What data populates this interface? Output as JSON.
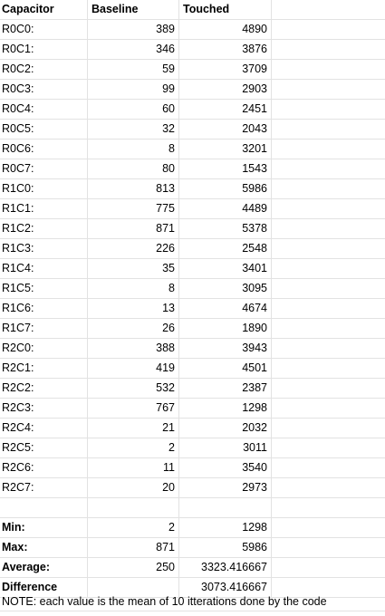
{
  "sheet": {
    "headers": {
      "capacitor": "Capacitor",
      "baseline": "Baseline",
      "touched": "Touched"
    },
    "rows": [
      {
        "label": "R0C0:",
        "baseline": "389",
        "touched": "4890"
      },
      {
        "label": "R0C1:",
        "baseline": "346",
        "touched": "3876"
      },
      {
        "label": "R0C2:",
        "baseline": "59",
        "touched": "3709"
      },
      {
        "label": "R0C3:",
        "baseline": "99",
        "touched": "2903"
      },
      {
        "label": "R0C4:",
        "baseline": "60",
        "touched": "2451"
      },
      {
        "label": "R0C5:",
        "baseline": "32",
        "touched": "2043"
      },
      {
        "label": "R0C6:",
        "baseline": "8",
        "touched": "3201"
      },
      {
        "label": "R0C7:",
        "baseline": "80",
        "touched": "1543"
      },
      {
        "label": "R1C0:",
        "baseline": "813",
        "touched": "5986"
      },
      {
        "label": "R1C1:",
        "baseline": "775",
        "touched": "4489"
      },
      {
        "label": "R1C2:",
        "baseline": "871",
        "touched": "5378"
      },
      {
        "label": "R1C3:",
        "baseline": "226",
        "touched": "2548"
      },
      {
        "label": "R1C4:",
        "baseline": "35",
        "touched": "3401"
      },
      {
        "label": "R1C5:",
        "baseline": "8",
        "touched": "3095"
      },
      {
        "label": "R1C6:",
        "baseline": "13",
        "touched": "4674"
      },
      {
        "label": "R1C7:",
        "baseline": "26",
        "touched": "1890"
      },
      {
        "label": "R2C0:",
        "baseline": "388",
        "touched": "3943"
      },
      {
        "label": "R2C1:",
        "baseline": "419",
        "touched": "4501"
      },
      {
        "label": "R2C2:",
        "baseline": "532",
        "touched": "2387"
      },
      {
        "label": "R2C3:",
        "baseline": "767",
        "touched": "1298"
      },
      {
        "label": "R2C4:",
        "baseline": "21",
        "touched": "2032"
      },
      {
        "label": "R2C5:",
        "baseline": "2",
        "touched": "3011"
      },
      {
        "label": "R2C6:",
        "baseline": "11",
        "touched": "3540"
      },
      {
        "label": "R2C7:",
        "baseline": "20",
        "touched": "2973"
      }
    ],
    "summary": [
      {
        "label": "Min:",
        "baseline": "2",
        "touched": "1298"
      },
      {
        "label": "Max:",
        "baseline": "871",
        "touched": "5986"
      },
      {
        "label": "Average:",
        "baseline": "250",
        "touched": "3323.416667"
      },
      {
        "label": "Difference",
        "baseline": "",
        "touched": "3073.416667"
      }
    ],
    "note": "NOTE: each value is the mean of 10 itterations done by the code"
  }
}
